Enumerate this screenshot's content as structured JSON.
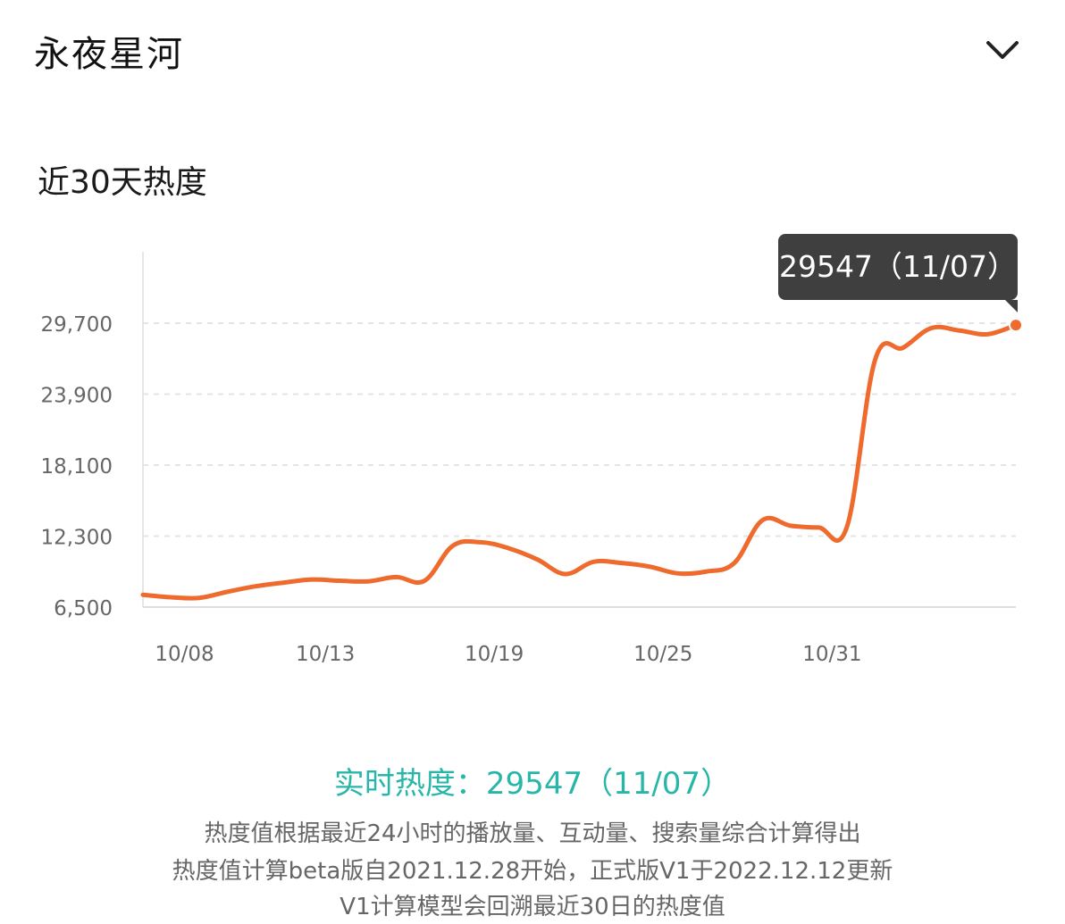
{
  "header": {
    "title": "永夜星河"
  },
  "icons": {
    "expand": "chevron-down-icon"
  },
  "section_title": "近30天热度",
  "tooltip": {
    "text": "29547（11/07）"
  },
  "realtime": {
    "label": "实时热度：",
    "value": "29547（11/07）"
  },
  "notes": [
    "热度值根据最近24小时的播放量、互动量、搜索量综合计算得出",
    "热度值计算beta版自2021.12.28开始，正式版V1于2022.12.12更新",
    "V1计算模型会回溯最近30日的热度值"
  ],
  "colors": {
    "line": "#ee6a2d",
    "accent_text": "#27b6a8",
    "tooltip_bg": "#3f3f3f"
  },
  "chart_data": {
    "type": "line",
    "title": "",
    "xlabel": "",
    "ylabel": "",
    "x_tick_labels": [
      "10/08",
      "10/13",
      "10/19",
      "10/25",
      "10/31"
    ],
    "y_tick_labels": [
      "29,700",
      "23,900",
      "18,100",
      "12,300",
      "6,500"
    ],
    "y_ticks": [
      29700,
      23900,
      18100,
      12300,
      6500
    ],
    "ylim": [
      6500,
      29700
    ],
    "grid": true,
    "series": [
      {
        "x": [
          "10/07",
          "10/08",
          "10/09",
          "10/10",
          "10/11",
          "10/12",
          "10/13",
          "10/14",
          "10/15",
          "10/16",
          "10/17",
          "10/18",
          "10/19",
          "10/20",
          "10/21",
          "10/22",
          "10/23",
          "10/24",
          "10/25",
          "10/26",
          "10/27",
          "10/28",
          "10/29",
          "10/30",
          "10/31",
          "11/01",
          "11/02",
          "11/03",
          "11/04",
          "11/05",
          "11/06",
          "11/07"
        ],
        "values": [
          7500,
          7300,
          7250,
          7750,
          8200,
          8500,
          8750,
          8650,
          8600,
          8950,
          8650,
          11500,
          11800,
          11300,
          10400,
          9200,
          10200,
          10100,
          9800,
          9250,
          9400,
          10100,
          13600,
          13150,
          13000,
          13050,
          26700,
          27700,
          29300,
          29100,
          28800,
          29547
        ]
      }
    ],
    "highlight": {
      "x": "11/07",
      "value": 29547
    }
  }
}
